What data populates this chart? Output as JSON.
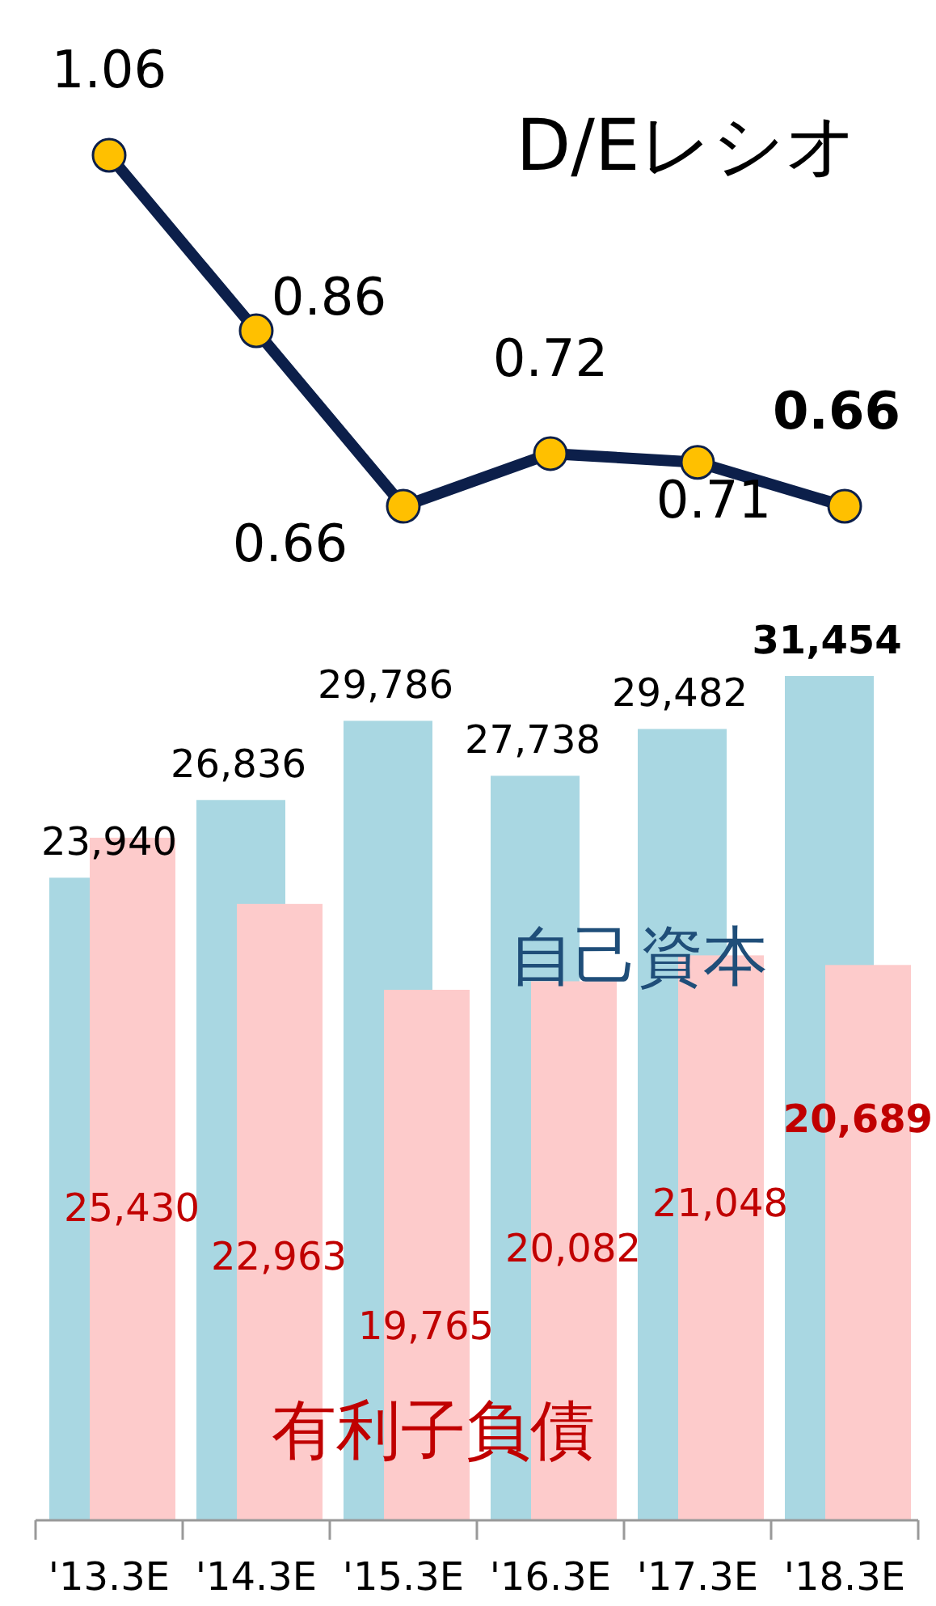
{
  "chart_data": [
    {
      "type": "line",
      "categories": [
        null,
        null,
        null,
        null,
        null,
        null
      ],
      "series": [
        {
          "name": "D/Eレシオ",
          "color": "#0c1f4a",
          "values": [
            1.06,
            0.86,
            0.66,
            0.72,
            0.71,
            0.66
          ]
        }
      ],
      "marker": "circle",
      "data_labels": true
    },
    {
      "type": "bar",
      "categories": [
        "'13.3E",
        "'14.3E",
        "'15.3E",
        "'16.3E",
        "'17.3E",
        "'18.3E"
      ],
      "series": [
        {
          "name": "自己資本",
          "color": "#a9d7e2",
          "values": [
            23940,
            26836,
            29786,
            27738,
            29482,
            31454
          ],
          "value_labels": [
            "23,940",
            "26,836",
            "29,786",
            "27,738",
            "29,482",
            "31,454"
          ]
        },
        {
          "name": "有利子負債",
          "color": "#fdcbcb",
          "values": [
            25430,
            22963,
            19765,
            20082,
            21048,
            20689
          ],
          "value_labels": [
            "25,430",
            "22,963",
            "19,765",
            "20,082",
            "21,048",
            "20,689"
          ]
        }
      ],
      "tick_labels": "x"
    }
  ]
}
